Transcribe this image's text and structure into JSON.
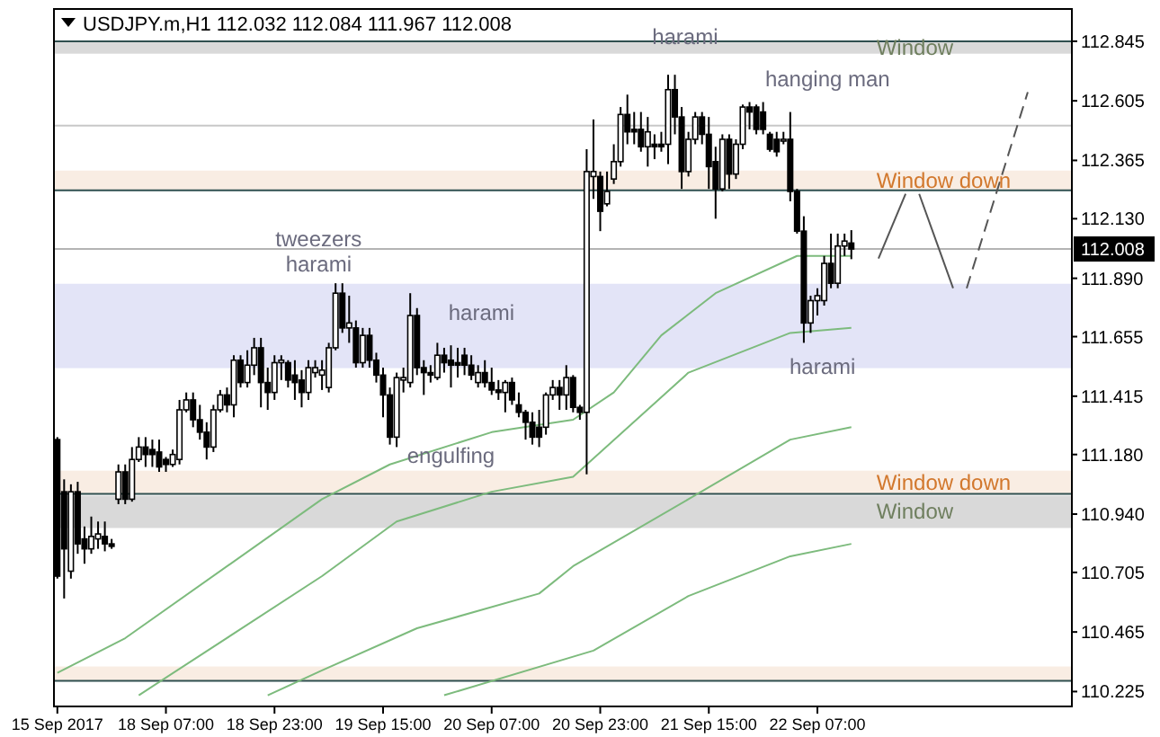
{
  "chart_data": {
    "type": "candlestick",
    "title": "USDJPY.m,H1  112.032 112.084 111.967 112.008",
    "categories": [
      "15 Sep 2017",
      null,
      null,
      null,
      null,
      null,
      null,
      null,
      null,
      null,
      null,
      null,
      null,
      null,
      null,
      null,
      "18 Sep 07:00",
      null,
      null,
      null,
      null,
      null,
      null,
      null,
      null,
      null,
      null,
      null,
      null,
      null,
      null,
      null,
      "18 Sep 23:00",
      null,
      null,
      null,
      null,
      null,
      null,
      null,
      null,
      null,
      null,
      null,
      null,
      null,
      null,
      null,
      "19 Sep 15:00",
      null,
      null,
      null,
      null,
      null,
      null,
      null,
      null,
      null,
      null,
      null,
      null,
      null,
      null,
      null,
      "20 Sep 07:00",
      null,
      null,
      null,
      null,
      null,
      null,
      null,
      null,
      null,
      null,
      null,
      null,
      null,
      null,
      null,
      "20 Sep 23:00",
      null,
      null,
      null,
      null,
      null,
      null,
      null,
      null,
      null,
      null,
      null,
      null,
      null,
      null,
      null,
      "21 Sep 15:00",
      null,
      null,
      null,
      null,
      null,
      null,
      null,
      null,
      null,
      null,
      null,
      null,
      null,
      null,
      null,
      "22 Sep 07:00",
      null,
      null,
      null,
      null,
      null,
      null,
      null,
      null,
      null,
      null,
      null,
      null,
      null,
      null,
      null,
      null,
      null,
      null,
      null,
      null,
      null,
      null,
      null,
      null,
      null,
      null,
      null,
      null,
      null,
      null,
      null,
      null,
      null,
      null,
      null,
      null,
      null
    ],
    "ohlc": [
      [
        111.24,
        111.25,
        110.68,
        110.69
      ],
      [
        111.03,
        111.08,
        110.6,
        110.8
      ],
      [
        110.71,
        111.06,
        110.68,
        111.03
      ],
      [
        111.03,
        111.07,
        110.78,
        110.82
      ],
      [
        110.84,
        110.89,
        110.74,
        110.8
      ],
      [
        110.8,
        110.93,
        110.78,
        110.85
      ],
      [
        110.84,
        110.91,
        110.8,
        110.86
      ],
      [
        110.85,
        110.91,
        110.79,
        110.82
      ],
      [
        110.82,
        110.84,
        110.8,
        110.81
      ],
      [
        111.0,
        111.14,
        110.98,
        111.11
      ],
      [
        111.11,
        111.14,
        110.98,
        111.0
      ],
      [
        111.0,
        111.21,
        110.99,
        111.16
      ],
      [
        111.16,
        111.25,
        111.15,
        111.21
      ],
      [
        111.21,
        111.25,
        111.13,
        111.18
      ],
      [
        111.2,
        111.24,
        111.13,
        111.18
      ],
      [
        111.19,
        111.24,
        111.11,
        111.13
      ],
      [
        111.16,
        111.17,
        111.11,
        111.14
      ],
      [
        111.14,
        111.2,
        111.13,
        111.18
      ],
      [
        111.16,
        111.4,
        111.14,
        111.36
      ],
      [
        111.36,
        111.43,
        111.35,
        111.4
      ],
      [
        111.4,
        111.43,
        111.29,
        111.32
      ],
      [
        111.32,
        111.38,
        111.24,
        111.27
      ],
      [
        111.27,
        111.31,
        111.16,
        111.21
      ],
      [
        111.21,
        111.38,
        111.19,
        111.36
      ],
      [
        111.36,
        111.44,
        111.35,
        111.42
      ],
      [
        111.42,
        111.45,
        111.35,
        111.38
      ],
      [
        111.38,
        111.58,
        111.33,
        111.56
      ],
      [
        111.56,
        111.58,
        111.45,
        111.47
      ],
      [
        111.47,
        111.6,
        111.45,
        111.54
      ],
      [
        111.54,
        111.65,
        111.5,
        111.61
      ],
      [
        111.61,
        111.65,
        111.37,
        111.47
      ],
      [
        111.47,
        111.53,
        111.36,
        111.43
      ],
      [
        111.43,
        111.58,
        111.4,
        111.55
      ],
      [
        111.55,
        111.58,
        111.48,
        111.56
      ],
      [
        111.55,
        111.56,
        111.45,
        111.48
      ],
      [
        111.5,
        111.56,
        111.4,
        111.47
      ],
      [
        111.48,
        111.52,
        111.37,
        111.43
      ],
      [
        111.43,
        111.56,
        111.4,
        111.53
      ],
      [
        111.51,
        111.56,
        111.49,
        111.53
      ],
      [
        111.5,
        111.56,
        111.44,
        111.52
      ],
      [
        111.45,
        111.63,
        111.43,
        111.61
      ],
      [
        111.61,
        111.87,
        111.6,
        111.83
      ],
      [
        111.83,
        111.87,
        111.67,
        111.69
      ],
      [
        111.69,
        111.82,
        111.63,
        111.71
      ],
      [
        111.69,
        111.72,
        111.53,
        111.55
      ],
      [
        111.55,
        111.69,
        111.53,
        111.66
      ],
      [
        111.66,
        111.69,
        111.53,
        111.56
      ],
      [
        111.56,
        111.59,
        111.47,
        111.5
      ],
      [
        111.5,
        111.53,
        111.33,
        111.42
      ],
      [
        111.42,
        111.45,
        111.22,
        111.25
      ],
      [
        111.25,
        111.51,
        111.21,
        111.49
      ],
      [
        111.48,
        111.53,
        111.43,
        111.49
      ],
      [
        111.47,
        111.83,
        111.45,
        111.74
      ],
      [
        111.74,
        111.77,
        111.5,
        111.53
      ],
      [
        111.53,
        111.56,
        111.42,
        111.51
      ],
      [
        111.51,
        111.54,
        111.47,
        111.5
      ],
      [
        111.49,
        111.63,
        111.48,
        111.58
      ],
      [
        111.58,
        111.61,
        111.51,
        111.55
      ],
      [
        111.56,
        111.62,
        111.45,
        111.54
      ],
      [
        111.55,
        111.61,
        111.49,
        111.54
      ],
      [
        111.58,
        111.61,
        111.5,
        111.54
      ],
      [
        111.54,
        111.58,
        111.48,
        111.5
      ],
      [
        111.47,
        111.54,
        111.45,
        111.51
      ],
      [
        111.51,
        111.56,
        111.45,
        111.47
      ],
      [
        111.47,
        111.53,
        111.42,
        111.44
      ],
      [
        111.44,
        111.48,
        111.4,
        111.43
      ],
      [
        111.43,
        111.48,
        111.35,
        111.47
      ],
      [
        111.47,
        111.49,
        111.38,
        111.4
      ],
      [
        111.38,
        111.43,
        111.33,
        111.35
      ],
      [
        111.35,
        111.36,
        111.24,
        111.31
      ],
      [
        111.31,
        111.35,
        111.22,
        111.25
      ],
      [
        111.29,
        111.36,
        111.21,
        111.25
      ],
      [
        111.29,
        111.43,
        111.26,
        111.42
      ],
      [
        111.42,
        111.48,
        111.4,
        111.45
      ],
      [
        111.45,
        111.48,
        111.36,
        111.42
      ],
      [
        111.42,
        111.54,
        111.36,
        111.49
      ],
      [
        111.49,
        111.5,
        111.35,
        111.37
      ],
      [
        111.37,
        111.38,
        111.32,
        111.35
      ],
      [
        111.35,
        112.41,
        111.1,
        112.32
      ],
      [
        112.3,
        112.53,
        112.21,
        112.32
      ],
      [
        112.3,
        112.32,
        112.08,
        112.16
      ],
      [
        112.19,
        112.32,
        112.18,
        112.24
      ],
      [
        112.29,
        112.43,
        112.27,
        112.36
      ],
      [
        112.36,
        112.58,
        112.34,
        112.55
      ],
      [
        112.55,
        112.63,
        112.43,
        112.48
      ],
      [
        112.49,
        112.56,
        112.43,
        112.48
      ],
      [
        112.49,
        112.56,
        112.4,
        112.42
      ],
      [
        112.42,
        112.54,
        112.34,
        112.48
      ],
      [
        112.43,
        112.47,
        112.37,
        112.42
      ],
      [
        112.43,
        112.48,
        112.4,
        112.42
      ],
      [
        112.43,
        112.71,
        112.35,
        112.65
      ],
      [
        112.65,
        112.71,
        112.47,
        112.54
      ],
      [
        112.54,
        112.58,
        112.25,
        112.32
      ],
      [
        112.32,
        112.48,
        112.3,
        112.45
      ],
      [
        112.45,
        112.56,
        112.43,
        112.54
      ],
      [
        112.54,
        112.56,
        112.43,
        112.47
      ],
      [
        112.47,
        112.54,
        112.25,
        112.34
      ],
      [
        112.36,
        112.42,
        112.13,
        112.25
      ],
      [
        112.25,
        112.47,
        112.24,
        112.45
      ],
      [
        112.45,
        112.47,
        112.25,
        112.31
      ],
      [
        112.31,
        112.45,
        112.29,
        112.43
      ],
      [
        112.43,
        112.59,
        112.41,
        112.58
      ],
      [
        112.58,
        112.6,
        112.49,
        112.56
      ],
      [
        112.58,
        112.59,
        112.47,
        112.49
      ],
      [
        112.56,
        112.6,
        112.47,
        112.49
      ],
      [
        112.47,
        112.48,
        112.4,
        112.41
      ],
      [
        112.45,
        112.48,
        112.38,
        112.4
      ],
      [
        112.45,
        112.48,
        112.43,
        112.45
      ],
      [
        112.45,
        112.56,
        112.2,
        112.24
      ],
      [
        112.24,
        112.25,
        112.07,
        112.08
      ],
      [
        112.08,
        112.14,
        111.63,
        111.71
      ],
      [
        111.71,
        111.82,
        111.67,
        111.8
      ],
      [
        111.8,
        111.85,
        111.74,
        111.82
      ],
      [
        111.8,
        111.98,
        111.78,
        111.95
      ],
      [
        111.95,
        112.07,
        111.85,
        111.87
      ],
      [
        111.87,
        112.07,
        111.85,
        112.02
      ],
      [
        112.02,
        112.07,
        111.98,
        112.04
      ],
      [
        112.032,
        112.084,
        111.967,
        112.008
      ],
      null,
      null,
      null,
      null,
      null,
      null,
      null,
      null,
      null,
      null,
      null,
      null,
      null,
      null,
      null,
      null,
      null,
      null,
      null,
      null,
      null,
      null,
      null,
      null,
      null,
      null,
      null,
      null,
      null,
      null,
      null,
      null
    ],
    "ylim": [
      110.165,
      112.975
    ],
    "yticks": [
      112.845,
      112.605,
      112.365,
      {
        "value": 112.13,
        "label": "112.130"
      },
      {
        "value": 111.89,
        "label": "111.890"
      },
      111.655,
      111.415,
      {
        "value": 111.18,
        "label": "111.180"
      },
      {
        "value": 110.94,
        "label": "110.940"
      },
      110.705,
      110.465,
      110.225
    ],
    "series": [
      {
        "type": "line",
        "color": "#7dbb7d",
        "values": [
          110.3,
          null,
          null,
          null,
          null,
          null,
          null,
          null,
          null,
          null,
          110.44,
          null,
          null,
          null,
          null,
          null,
          null,
          null,
          null,
          null,
          null,
          null,
          null,
          null,
          null,
          null,
          null,
          null,
          null,
          null,
          null,
          null,
          null,
          null,
          null,
          null,
          null,
          null,
          null,
          111.0,
          null,
          null,
          null,
          null,
          null,
          null,
          null,
          null,
          null,
          111.14,
          null,
          null,
          null,
          null,
          null,
          null,
          null,
          null,
          null,
          null,
          null,
          null,
          null,
          null,
          111.27,
          null,
          null,
          null,
          null,
          null,
          null,
          null,
          null,
          null,
          null,
          null,
          111.32,
          null,
          null,
          null,
          null,
          null,
          111.43,
          null,
          null,
          null,
          null,
          null,
          null,
          111.66,
          null,
          null,
          null,
          null,
          null,
          null,
          null,
          111.83,
          null,
          null,
          null,
          null,
          null,
          null,
          null,
          null,
          null,
          null,
          null,
          111.98,
          null,
          null,
          null,
          null,
          null,
          null,
          null,
          111.98,
          null,
          null,
          null,
          null,
          null,
          null,
          null,
          null,
          null,
          null,
          null,
          null,
          null,
          null,
          null,
          null,
          null,
          null,
          null,
          null,
          null,
          null,
          null,
          null,
          null,
          null,
          null,
          null,
          null,
          null,
          null,
          null
        ]
      },
      {
        "type": "line",
        "color": "#7dbb7d",
        "values": [
          null,
          null,
          null,
          null,
          null,
          null,
          null,
          null,
          null,
          null,
          null,
          null,
          110.21,
          null,
          null,
          null,
          null,
          null,
          null,
          null,
          null,
          null,
          null,
          null,
          null,
          null,
          null,
          null,
          null,
          null,
          null,
          null,
          null,
          null,
          null,
          null,
          null,
          null,
          null,
          110.69,
          null,
          null,
          null,
          null,
          null,
          null,
          null,
          null,
          null,
          null,
          110.91,
          null,
          null,
          null,
          null,
          null,
          null,
          null,
          null,
          null,
          null,
          null,
          null,
          null,
          111.03,
          null,
          null,
          null,
          null,
          null,
          null,
          null,
          null,
          null,
          null,
          null,
          111.09,
          null,
          null,
          null,
          null,
          null,
          null,
          null,
          null,
          null,
          null,
          null,
          null,
          null,
          null,
          null,
          null,
          111.51,
          null,
          null,
          null,
          null,
          null,
          null,
          null,
          null,
          null,
          null,
          null,
          null,
          null,
          null,
          111.67,
          null,
          null,
          null,
          null,
          null,
          null,
          null,
          null,
          111.69,
          null,
          null,
          null,
          null,
          null,
          null,
          null,
          null,
          null,
          null,
          null,
          null,
          null,
          null,
          null,
          null,
          null,
          null,
          null,
          null,
          null,
          null,
          null,
          null,
          null,
          null,
          null,
          null,
          null,
          null,
          null,
          null
        ]
      },
      {
        "type": "line",
        "color": "#7dbb7d",
        "values": [
          null,
          null,
          null,
          null,
          null,
          null,
          null,
          null,
          null,
          null,
          null,
          null,
          null,
          null,
          null,
          null,
          null,
          null,
          null,
          null,
          null,
          null,
          null,
          null,
          null,
          null,
          null,
          null,
          null,
          null,
          null,
          110.21,
          null,
          null,
          null,
          null,
          null,
          null,
          null,
          110.31,
          null,
          null,
          null,
          null,
          null,
          null,
          null,
          null,
          null,
          null,
          null,
          null,
          null,
          110.48,
          null,
          null,
          null,
          null,
          null,
          null,
          null,
          null,
          null,
          null,
          null,
          null,
          null,
          null,
          null,
          null,
          null,
          110.62,
          null,
          null,
          null,
          null,
          110.73,
          null,
          null,
          null,
          null,
          null,
          null,
          null,
          null,
          null,
          null,
          null,
          null,
          null,
          null,
          null,
          null,
          111.0,
          null,
          null,
          null,
          null,
          null,
          null,
          null,
          null,
          null,
          null,
          null,
          null,
          null,
          null,
          111.24,
          null,
          null,
          null,
          null,
          null,
          null,
          null,
          null,
          111.29,
          null,
          null,
          null,
          null,
          null,
          null,
          null,
          null,
          null,
          null,
          null,
          null,
          null,
          null,
          null,
          null,
          null,
          null,
          null,
          null,
          null,
          null,
          null,
          null,
          null,
          null,
          null,
          null,
          null,
          null,
          null,
          null
        ]
      },
      {
        "type": "line",
        "color": "#7dbb7d",
        "values": [
          null,
          null,
          null,
          null,
          null,
          null,
          null,
          null,
          null,
          null,
          null,
          null,
          null,
          null,
          null,
          null,
          null,
          null,
          null,
          null,
          null,
          null,
          null,
          null,
          null,
          null,
          null,
          null,
          null,
          null,
          null,
          null,
          null,
          null,
          null,
          null,
          null,
          null,
          null,
          null,
          null,
          null,
          null,
          null,
          null,
          null,
          null,
          null,
          null,
          null,
          null,
          null,
          null,
          null,
          null,
          null,
          null,
          110.21,
          null,
          null,
          null,
          null,
          null,
          null,
          null,
          null,
          null,
          null,
          null,
          null,
          null,
          null,
          null,
          null,
          null,
          null,
          null,
          null,
          null,
          110.39,
          null,
          null,
          null,
          null,
          null,
          null,
          null,
          null,
          null,
          null,
          null,
          null,
          null,
          110.61,
          null,
          null,
          null,
          null,
          null,
          null,
          null,
          null,
          null,
          null,
          null,
          null,
          null,
          null,
          110.77,
          null,
          null,
          null,
          null,
          null,
          null,
          null,
          null,
          110.82,
          null,
          null,
          null,
          null,
          null,
          null,
          null,
          null,
          null,
          null,
          null,
          null,
          null,
          null,
          null,
          null,
          null,
          null,
          null,
          null,
          null,
          null,
          null,
          null,
          null,
          null,
          null,
          null,
          null,
          null,
          null,
          null
        ]
      },
      {
        "type": "line",
        "color": "#555555",
        "values": [
          null,
          null,
          null,
          null,
          null,
          null,
          null,
          null,
          null,
          null,
          null,
          null,
          null,
          null,
          null,
          null,
          null,
          null,
          null,
          null,
          null,
          null,
          null,
          null,
          null,
          null,
          null,
          null,
          null,
          null,
          null,
          null,
          null,
          null,
          null,
          null,
          null,
          null,
          null,
          null,
          null,
          null,
          null,
          null,
          null,
          null,
          null,
          null,
          null,
          null,
          null,
          null,
          null,
          null,
          null,
          null,
          null,
          null,
          null,
          null,
          null,
          null,
          null,
          null,
          null,
          null,
          null,
          null,
          null,
          null,
          null,
          null,
          null,
          null,
          null,
          null,
          null,
          null,
          null,
          null,
          null,
          null,
          null,
          null,
          null,
          null,
          null,
          null,
          null,
          null,
          null,
          null,
          null,
          null,
          null,
          null,
          null,
          null,
          null,
          null,
          null,
          null,
          null,
          null,
          null,
          null,
          null,
          null,
          null,
          null,
          null,
          null,
          null,
          null,
          null,
          null,
          null,
          null,
          null,
          null,
          null,
          111.97,
          null,
          null,
          null,
          112.23,
          null,
          null,
          null,
          null,
          null,
          null,
          null,
          null,
          null,
          null,
          null,
          null,
          null,
          null,
          null,
          null,
          null,
          null,
          null,
          null,
          null,
          null,
          null,
          null
        ]
      },
      {
        "type": "line",
        "color": "#555555",
        "values": [
          null,
          null,
          null,
          null,
          null,
          null,
          null,
          null,
          null,
          null,
          null,
          null,
          null,
          null,
          null,
          null,
          null,
          null,
          null,
          null,
          null,
          null,
          null,
          null,
          null,
          null,
          null,
          null,
          null,
          null,
          null,
          null,
          null,
          null,
          null,
          null,
          null,
          null,
          null,
          null,
          null,
          null,
          null,
          null,
          null,
          null,
          null,
          null,
          null,
          null,
          null,
          null,
          null,
          null,
          null,
          null,
          null,
          null,
          null,
          null,
          null,
          null,
          null,
          null,
          null,
          null,
          null,
          null,
          null,
          null,
          null,
          null,
          null,
          null,
          null,
          null,
          null,
          null,
          null,
          null,
          null,
          null,
          null,
          null,
          null,
          null,
          null,
          null,
          null,
          null,
          null,
          null,
          null,
          null,
          null,
          null,
          null,
          null,
          null,
          null,
          null,
          null,
          null,
          null,
          null,
          null,
          null,
          null,
          null,
          null,
          null,
          null,
          null,
          null,
          null,
          null,
          null,
          null,
          null,
          null,
          null,
          null,
          null,
          null,
          null,
          null,
          null,
          112.23,
          null,
          null,
          null,
          null,
          111.85,
          null,
          null,
          null,
          null,
          null,
          null,
          null,
          null,
          null,
          null,
          null,
          null,
          null,
          null,
          null,
          null,
          null
        ]
      },
      {
        "type": "line",
        "color": "#555555",
        "line_style": "dashed",
        "values": [
          null,
          null,
          null,
          null,
          null,
          null,
          null,
          null,
          null,
          null,
          null,
          null,
          null,
          null,
          null,
          null,
          null,
          null,
          null,
          null,
          null,
          null,
          null,
          null,
          null,
          null,
          null,
          null,
          null,
          null,
          null,
          null,
          null,
          null,
          null,
          null,
          null,
          null,
          null,
          null,
          null,
          null,
          null,
          null,
          null,
          null,
          null,
          null,
          null,
          null,
          null,
          null,
          null,
          null,
          null,
          null,
          null,
          null,
          null,
          null,
          null,
          null,
          null,
          null,
          null,
          null,
          null,
          null,
          null,
          null,
          null,
          null,
          null,
          null,
          null,
          null,
          null,
          null,
          null,
          null,
          null,
          null,
          null,
          null,
          null,
          null,
          null,
          null,
          null,
          null,
          null,
          null,
          null,
          null,
          null,
          null,
          null,
          null,
          null,
          null,
          null,
          null,
          null,
          null,
          null,
          null,
          null,
          null,
          null,
          null,
          null,
          null,
          null,
          null,
          null,
          null,
          null,
          null,
          null,
          null,
          null,
          null,
          null,
          null,
          null,
          null,
          null,
          null,
          null,
          null,
          null,
          null,
          null,
          null,
          111.85,
          null,
          null,
          null,
          null,
          null,
          null,
          null,
          null,
          112.64,
          null,
          null,
          null,
          null,
          null,
          null
        ]
      }
    ],
    "ref_lines": [
      {
        "axis": "y",
        "value": 112.845,
        "color": "#2f4f4f"
      },
      {
        "axis": "y",
        "value": 112.244,
        "color": "#2f4f4f"
      },
      {
        "axis": "y",
        "value": 111.021,
        "color": "#2f4f4f"
      },
      {
        "axis": "y",
        "value": 110.268,
        "color": "#2f4f4f"
      },
      {
        "axis": "y",
        "value": 112.505,
        "color": "#c8c8c8"
      },
      {
        "axis": "y",
        "value": 112.008,
        "color": "#b4b4b4",
        "label": "112.008"
      }
    ],
    "bands": [
      {
        "axis": "y",
        "from": 112.795,
        "to": 112.845,
        "color": "#d9d9d9",
        "label": "Window"
      },
      {
        "axis": "y",
        "from": 112.244,
        "to": 112.324,
        "color": "#f9ede3",
        "label": "Window down"
      },
      {
        "axis": "y",
        "from": 111.528,
        "to": 111.868,
        "color": "#e3e4f7"
      },
      {
        "axis": "y",
        "from": 111.021,
        "to": 111.115,
        "color": "#f9ede3",
        "label": "Window down"
      },
      {
        "axis": "y",
        "from": 110.884,
        "to": 111.014,
        "color": "#d9d9d9",
        "label": "Window"
      },
      {
        "axis": "y",
        "from": 110.268,
        "to": 110.326,
        "color": "#f9ede3"
      }
    ],
    "annotations": [
      "tweezers",
      "harami",
      "harami",
      "engulfing",
      "harami",
      "hanging man",
      "harami"
    ]
  }
}
